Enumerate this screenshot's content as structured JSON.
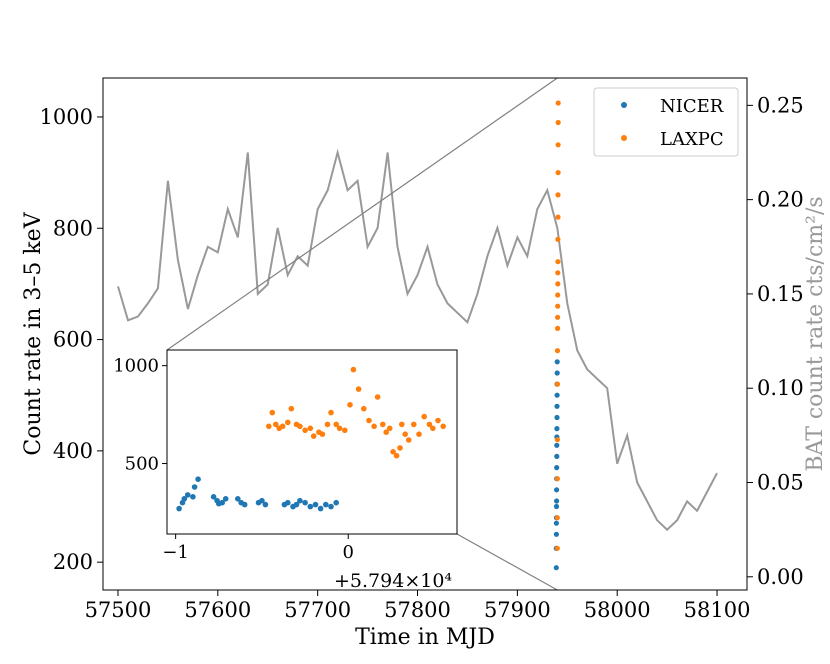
{
  "chart_data": [
    {
      "type": "line",
      "panel": "main",
      "xlabel": "Time in MJD",
      "ylabel": "Count rate in 3–5 keV",
      "y2label": "BAT count rate cts/cm²/s",
      "xlim": [
        57485,
        58130
      ],
      "ylim": [
        150,
        1070
      ],
      "y2lim": [
        -0.007,
        0.2645
      ],
      "x_ticks": [
        57500,
        57600,
        57700,
        57800,
        57900,
        58000,
        58100
      ],
      "y_ticks": [
        200,
        400,
        600,
        800,
        1000
      ],
      "y2_ticks": [
        0.0,
        0.05,
        0.1,
        0.15,
        0.2,
        0.25
      ],
      "grid": false,
      "legend_position": "top-right",
      "series": [
        {
          "name": "NICER",
          "color": "#1f77b4",
          "marker": "dot",
          "x": [
            57939.0,
            57939.05,
            57939.1,
            57939.15,
            57939.2,
            57939.25,
            57939.3,
            57939.35,
            57939.4,
            57939.45,
            57939.5,
            57939.55,
            57939.6,
            57939.65,
            57939.7,
            57939.75,
            57939.8,
            57939.85,
            57939.9,
            57939.95
          ],
          "y": [
            190,
            225,
            250,
            270,
            280,
            300,
            310,
            330,
            350,
            370,
            390,
            410,
            425,
            440,
            460,
            480,
            500,
            520,
            540,
            560
          ]
        },
        {
          "name": "LAXPC",
          "color": "#ff7f0e",
          "marker": "dot",
          "x": [
            57940.0,
            57940.05,
            57940.1,
            57940.15,
            57940.2,
            57940.25,
            57940.3,
            57940.35,
            57940.4,
            57940.45,
            57940.5,
            57940.55,
            57940.6,
            57940.65,
            57940.7,
            57940.75,
            57940.8,
            57940.85,
            57940.9,
            57940.95
          ],
          "y": [
            225,
            280,
            350,
            420,
            520,
            580,
            620,
            640,
            660,
            680,
            700,
            720,
            740,
            780,
            820,
            860,
            900,
            950,
            990,
            1025
          ]
        },
        {
          "name": "BAT",
          "color": "#999999",
          "axis": "right",
          "x": [
            57500,
            57510,
            57520,
            57530,
            57540,
            57550,
            57560,
            57570,
            57580,
            57590,
            57600,
            57610,
            57620,
            57630,
            57640,
            57650,
            57660,
            57670,
            57680,
            57690,
            57700,
            57710,
            57720,
            57730,
            57740,
            57750,
            57760,
            57770,
            57780,
            57790,
            57800,
            57810,
            57820,
            57830,
            57840,
            57850,
            57860,
            57870,
            57880,
            57890,
            57900,
            57910,
            57920,
            57930,
            57940,
            57950,
            57960,
            57970,
            57980,
            57990,
            58000,
            58010,
            58020,
            58030,
            58040,
            58050,
            58060,
            58070,
            58080,
            58090,
            58100
          ],
          "y": [
            0.154,
            0.136,
            0.138,
            0.145,
            0.153,
            0.21,
            0.168,
            0.142,
            0.16,
            0.175,
            0.172,
            0.195,
            0.18,
            0.225,
            0.15,
            0.155,
            0.185,
            0.16,
            0.17,
            0.165,
            0.195,
            0.205,
            0.225,
            0.205,
            0.21,
            0.175,
            0.185,
            0.225,
            0.175,
            0.15,
            0.16,
            0.175,
            0.155,
            0.145,
            0.14,
            0.135,
            0.15,
            0.17,
            0.185,
            0.165,
            0.18,
            0.17,
            0.195,
            0.205,
            0.185,
            0.145,
            0.12,
            0.11,
            0.105,
            0.1,
            0.06,
            0.075,
            0.05,
            0.04,
            0.03,
            0.025,
            0.03,
            0.04,
            0.035,
            0.045,
            0.055
          ]
        }
      ]
    },
    {
      "type": "scatter",
      "panel": "inset",
      "xlim": [
        -1.05,
        0.63
      ],
      "ylim": [
        140,
        1080
      ],
      "x_ticks": [
        -1,
        0
      ],
      "x_tick_labels": [
        "−1",
        "0"
      ],
      "y_ticks": [
        500,
        1000
      ],
      "x_offset_label": "+5.794×10⁴",
      "series": [
        {
          "name": "NICER",
          "color": "#1f77b4",
          "x": [
            -0.98,
            -0.96,
            -0.95,
            -0.93,
            -0.9,
            -0.89,
            -0.87,
            -0.78,
            -0.76,
            -0.75,
            -0.73,
            -0.71,
            -0.64,
            -0.62,
            -0.6,
            -0.52,
            -0.5,
            -0.48,
            -0.37,
            -0.35,
            -0.32,
            -0.3,
            -0.28,
            -0.25,
            -0.22,
            -0.19,
            -0.16,
            -0.13,
            -0.1,
            -0.07
          ],
          "y": [
            270,
            300,
            320,
            340,
            330,
            380,
            420,
            330,
            310,
            295,
            300,
            320,
            320,
            300,
            290,
            300,
            310,
            290,
            290,
            300,
            280,
            290,
            310,
            300,
            280,
            290,
            270,
            290,
            280,
            300
          ]
        },
        {
          "name": "LAXPC",
          "color": "#ff7f0e",
          "x": [
            -0.46,
            -0.44,
            -0.42,
            -0.4,
            -0.38,
            -0.35,
            -0.33,
            -0.3,
            -0.28,
            -0.25,
            -0.22,
            -0.2,
            -0.17,
            -0.15,
            -0.12,
            -0.1,
            -0.07,
            -0.05,
            -0.02,
            0.01,
            0.03,
            0.06,
            0.09,
            0.12,
            0.15,
            0.17,
            0.2,
            0.22,
            0.24,
            0.26,
            0.28,
            0.3,
            0.31,
            0.33,
            0.35,
            0.38,
            0.41,
            0.44,
            0.47,
            0.49,
            0.52,
            0.55
          ],
          "y": [
            690,
            760,
            700,
            680,
            690,
            710,
            780,
            700,
            690,
            670,
            680,
            640,
            660,
            650,
            700,
            760,
            700,
            680,
            670,
            800,
            980,
            880,
            780,
            720,
            690,
            840,
            700,
            660,
            680,
            560,
            540,
            580,
            700,
            650,
            620,
            700,
            650,
            740,
            700,
            680,
            720,
            690
          ]
        }
      ]
    }
  ],
  "legend": {
    "items": [
      {
        "label": "NICER",
        "color": "#1f77b4"
      },
      {
        "label": "LAXPC",
        "color": "#ff7f0e"
      }
    ]
  },
  "labels": {
    "xlabel": "Time in MJD",
    "ylabel": "Count rate in 3–5 keV",
    "y2label": "BAT count rate cts/cm²/s",
    "inset_offset": "+5.794×10⁴"
  }
}
